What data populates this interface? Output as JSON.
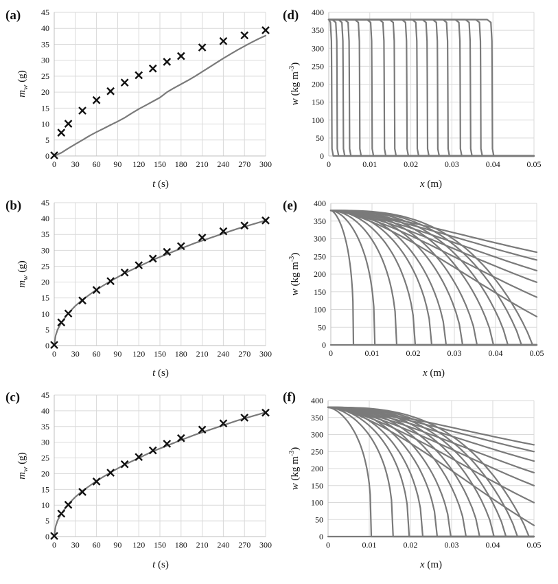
{
  "colors": {
    "curve": "#7a7a7a",
    "marker": "#111111",
    "grid": "#d9d9d9"
  },
  "chart_data": [
    {
      "panel": "(a)",
      "type": "scatter",
      "xlabel": "t (s)",
      "ylabel": "m_w (g)",
      "xlim": [
        0,
        300
      ],
      "ylim": [
        0,
        45
      ],
      "xticks": [
        0,
        30,
        60,
        90,
        120,
        150,
        180,
        210,
        240,
        270,
        300
      ],
      "yticks": [
        0,
        5,
        10,
        15,
        20,
        25,
        30,
        35,
        40,
        45
      ],
      "grid": true,
      "series": [
        {
          "kind": "markers",
          "marker": "x",
          "x": [
            0,
            10,
            20,
            40,
            60,
            80,
            100,
            120,
            140,
            160,
            180,
            210,
            240,
            270,
            300
          ],
          "y": [
            0.2,
            7.3,
            10.1,
            14.2,
            17.5,
            20.3,
            23.0,
            25.3,
            27.4,
            29.5,
            31.3,
            34.0,
            36.0,
            37.8,
            39.4
          ]
        },
        {
          "kind": "line",
          "x": [
            0,
            10,
            20,
            30,
            40,
            50,
            60,
            70,
            80,
            90,
            100,
            110,
            120,
            130,
            140,
            150,
            160,
            170,
            180,
            190,
            200,
            210,
            220,
            230,
            240,
            250,
            260,
            270,
            280,
            290,
            300
          ],
          "y": [
            0,
            1.0,
            2.4,
            3.7,
            5.0,
            6.3,
            7.5,
            8.6,
            9.7,
            10.8,
            12.0,
            13.4,
            14.7,
            15.9,
            17.1,
            18.3,
            20.0,
            21.3,
            22.5,
            23.7,
            25.0,
            26.4,
            27.8,
            29.2,
            30.6,
            31.9,
            33.2,
            34.4,
            35.6,
            36.7,
            37.7
          ]
        }
      ]
    },
    {
      "panel": "(b)",
      "type": "scatter",
      "xlabel": "t (s)",
      "ylabel": "m_w (g)",
      "xlim": [
        0,
        300
      ],
      "ylim": [
        0,
        45
      ],
      "xticks": [
        0,
        30,
        60,
        90,
        120,
        150,
        180,
        210,
        240,
        270,
        300
      ],
      "yticks": [
        0,
        5,
        10,
        15,
        20,
        25,
        30,
        35,
        40,
        45
      ],
      "grid": true,
      "series": [
        {
          "kind": "markers",
          "marker": "x",
          "x": [
            0,
            10,
            20,
            40,
            60,
            80,
            100,
            120,
            140,
            160,
            180,
            210,
            240,
            270,
            300
          ],
          "y": [
            0.2,
            7.3,
            10.1,
            14.2,
            17.5,
            20.3,
            23.0,
            25.3,
            27.4,
            29.5,
            31.3,
            34.0,
            36.0,
            37.8,
            39.4
          ]
        },
        {
          "kind": "line",
          "x": [
            0,
            2,
            5,
            10,
            20,
            30,
            40,
            60,
            80,
            100,
            120,
            140,
            160,
            180,
            200,
            220,
            240,
            260,
            280,
            300
          ],
          "y": [
            0,
            3.2,
            5.1,
            7.2,
            10.2,
            12.5,
            14.4,
            17.6,
            20.3,
            22.8,
            24.9,
            27.0,
            28.8,
            30.6,
            32.3,
            33.8,
            35.3,
            36.8,
            38.1,
            39.4
          ]
        }
      ]
    },
    {
      "panel": "(c)",
      "type": "scatter",
      "xlabel": "t (s)",
      "ylabel": "m_w (g)",
      "xlim": [
        0,
        300
      ],
      "ylim": [
        0,
        45
      ],
      "xticks": [
        0,
        30,
        60,
        90,
        120,
        150,
        180,
        210,
        240,
        270,
        300
      ],
      "yticks": [
        0,
        5,
        10,
        15,
        20,
        25,
        30,
        35,
        40,
        45
      ],
      "grid": true,
      "series": [
        {
          "kind": "markers",
          "marker": "x",
          "x": [
            0,
            10,
            20,
            40,
            60,
            80,
            100,
            120,
            140,
            160,
            180,
            210,
            240,
            270,
            300
          ],
          "y": [
            0.2,
            7.3,
            10.1,
            14.2,
            17.5,
            20.3,
            23.0,
            25.3,
            27.4,
            29.5,
            31.3,
            34.0,
            36.0,
            37.8,
            39.4
          ]
        },
        {
          "kind": "line",
          "x": [
            0,
            2,
            5,
            10,
            20,
            30,
            40,
            60,
            80,
            100,
            120,
            140,
            160,
            180,
            200,
            220,
            240,
            260,
            280,
            300
          ],
          "y": [
            0,
            3.3,
            5.2,
            7.3,
            10.3,
            12.6,
            14.5,
            17.7,
            20.4,
            22.9,
            25.0,
            27.1,
            28.9,
            30.7,
            32.4,
            33.9,
            35.4,
            36.9,
            38.2,
            39.5
          ]
        }
      ]
    },
    {
      "panel": "(d)",
      "type": "line",
      "xlabel": "x (m)",
      "ylabel": "w (kg m⁻³)",
      "xlim": [
        0,
        0.05
      ],
      "ylim": [
        0,
        400
      ],
      "xticks": [
        0,
        0.01,
        0.02,
        0.03,
        0.04,
        0.05
      ],
      "yticks": [
        0,
        50,
        100,
        150,
        200,
        250,
        300,
        350,
        400
      ],
      "grid": true,
      "front_positions": [
        0.0007,
        0.002,
        0.0035,
        0.005,
        0.0075,
        0.0105,
        0.0135,
        0.016,
        0.019,
        0.0215,
        0.024,
        0.0265,
        0.029,
        0.032,
        0.0345,
        0.037,
        0.0398
      ],
      "plateau": 380
    },
    {
      "panel": "(e)",
      "type": "line",
      "xlabel": "x (m)",
      "ylabel": "w (kg m⁻³)",
      "xlim": [
        0,
        0.05
      ],
      "ylim": [
        0,
        400
      ],
      "xticks": [
        0,
        0.01,
        0.02,
        0.03,
        0.04,
        0.05
      ],
      "yticks": [
        0,
        50,
        100,
        150,
        200,
        250,
        300,
        350,
        400
      ],
      "grid": true,
      "surface_value": 380,
      "front_positions": [
        0.0055,
        0.0107,
        0.016,
        0.0205,
        0.0245,
        0.028,
        0.032,
        0.0355,
        0.0395,
        0.043,
        0.0463,
        0.049
      ],
      "end_values": [
        80,
        135,
        177,
        210,
        240,
        262
      ]
    },
    {
      "panel": "(f)",
      "type": "line",
      "xlabel": "x (m)",
      "ylabel": "w (kg m⁻³)",
      "xlim": [
        0,
        0.05
      ],
      "ylim": [
        0,
        400
      ],
      "xticks": [
        0,
        0.01,
        0.02,
        0.03,
        0.04,
        0.05
      ],
      "yticks": [
        0,
        50,
        100,
        150,
        200,
        250,
        300,
        350,
        400
      ],
      "grid": true,
      "surface_value": 380,
      "front_positions": [
        0.0105,
        0.0158,
        0.0197,
        0.023,
        0.0265,
        0.0298,
        0.0335,
        0.0368,
        0.0403,
        0.0432,
        0.046,
        0.0488
      ],
      "end_values": [
        33,
        100,
        150,
        188,
        222,
        250,
        270
      ]
    }
  ]
}
